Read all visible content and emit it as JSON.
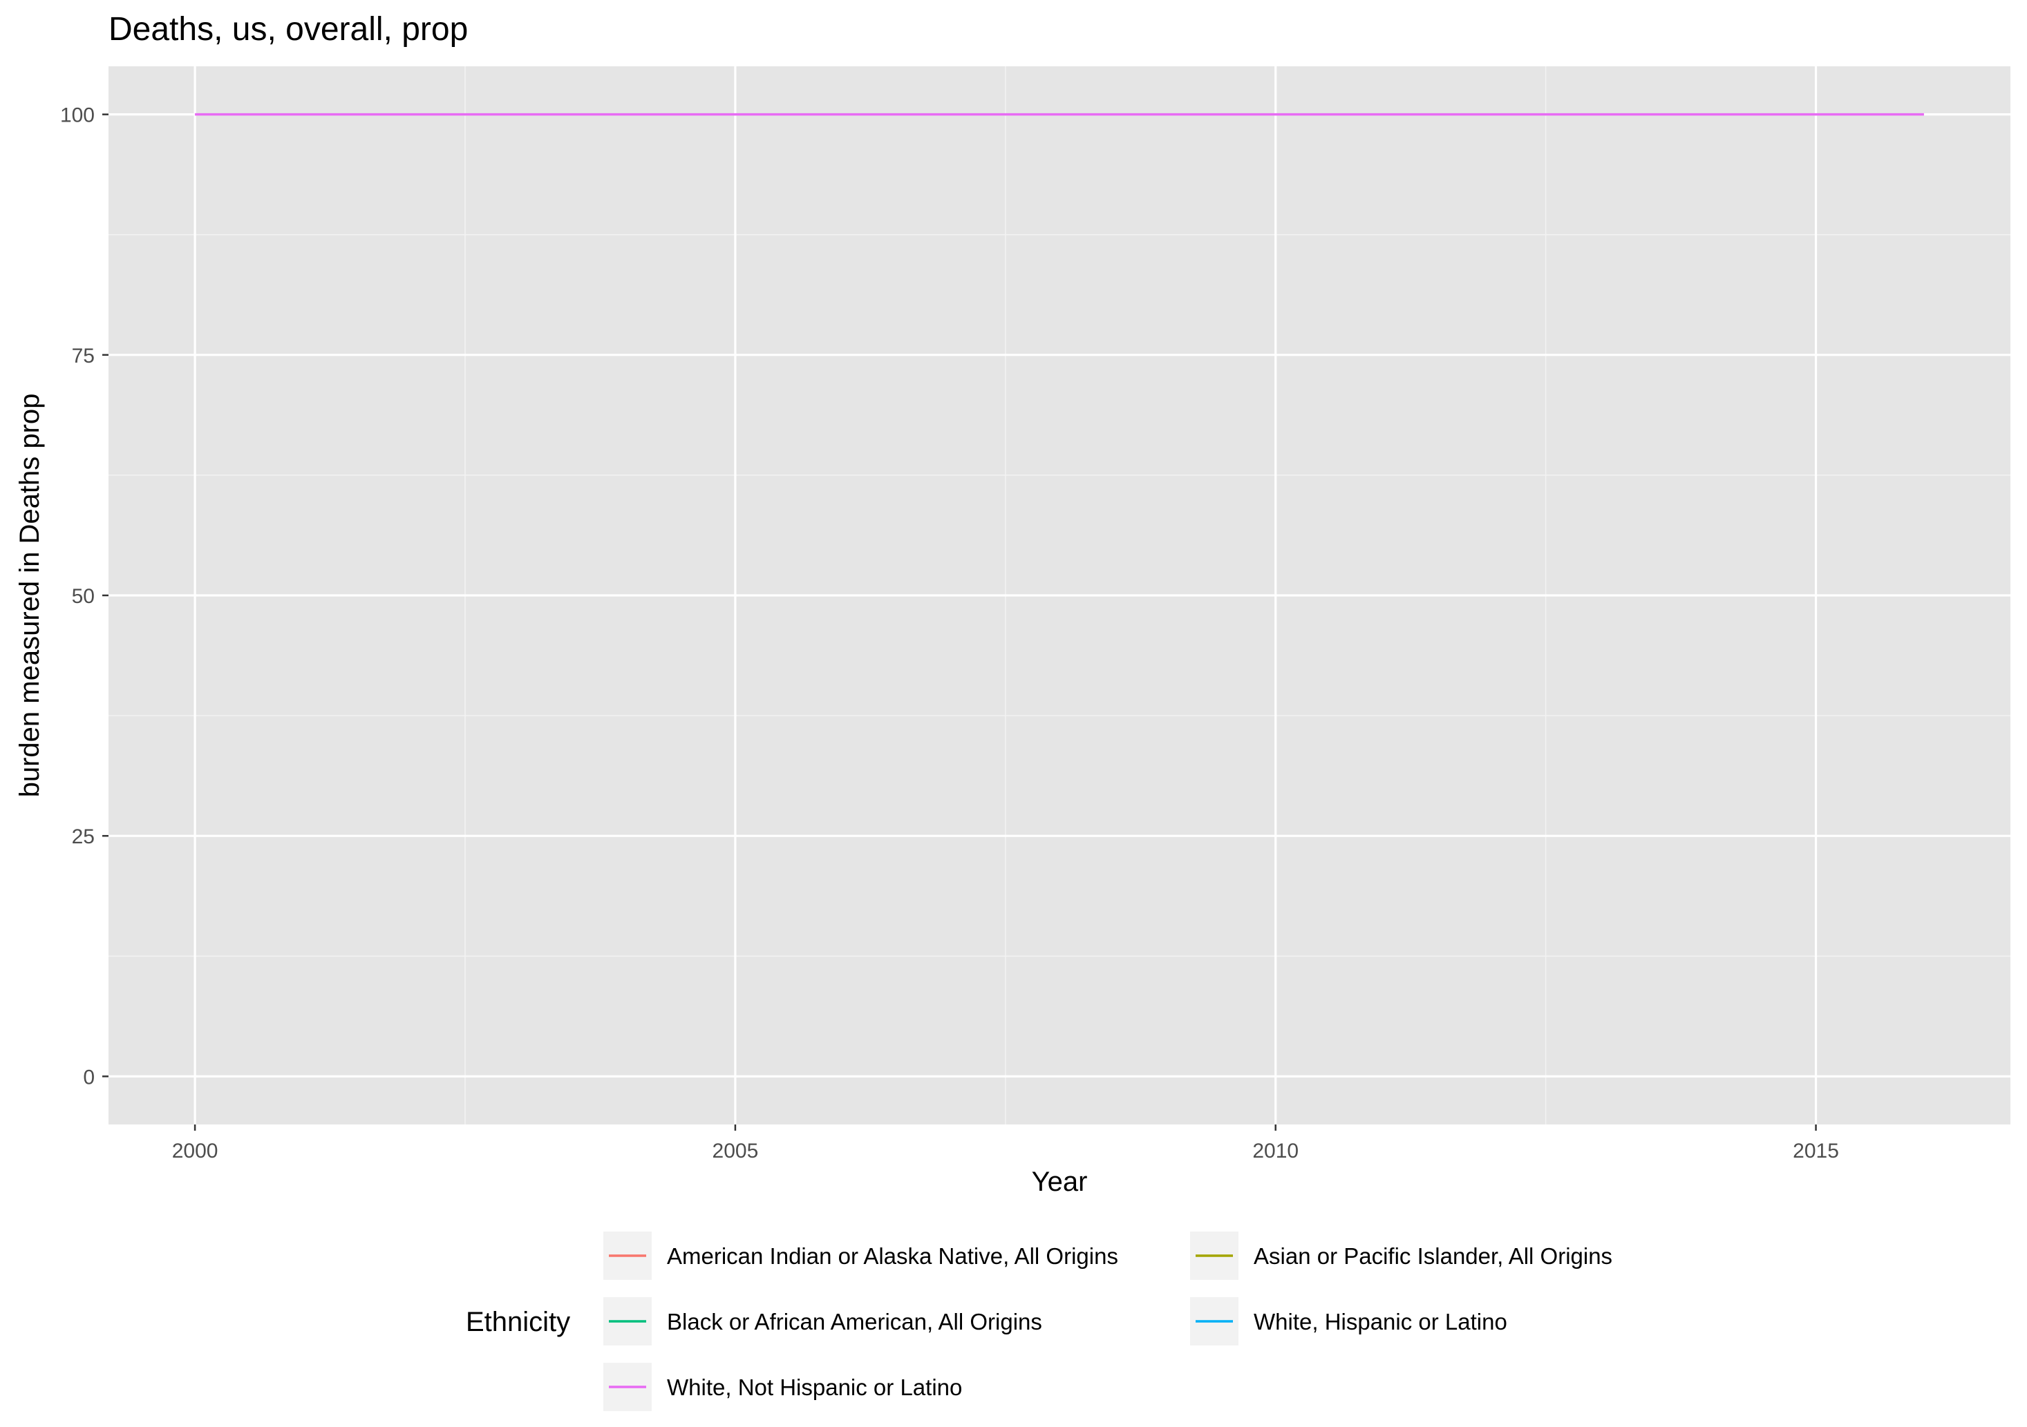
{
  "chart_data": {
    "type": "line",
    "title": "Deaths, us, overall, prop",
    "xlabel": "Year",
    "ylabel": "burden measured in Deaths prop",
    "xlim": [
      1999.2,
      2016.8
    ],
    "ylim": [
      -5,
      105
    ],
    "x_ticks": [
      2000,
      2005,
      2010,
      2015
    ],
    "y_ticks": [
      0,
      25,
      50,
      75,
      100
    ],
    "grid": true,
    "legend": {
      "title": "Ethnicity",
      "placement": "bottom"
    },
    "series": [
      {
        "name": "American Indian or Alaska Native, All Origins",
        "color": "#F8766D",
        "x": [],
        "y": []
      },
      {
        "name": "Asian or Pacific Islander, All Origins",
        "color": "#A3A500",
        "x": [],
        "y": []
      },
      {
        "name": "Black or African American, All Origins",
        "color": "#00BF7D",
        "x": [],
        "y": []
      },
      {
        "name": "White, Hispanic or Latino",
        "color": "#00B0F6",
        "x": [],
        "y": []
      },
      {
        "name": "White, Not Hispanic or Latino",
        "color": "#E76BF3",
        "x": [
          2000,
          2001,
          2002,
          2003,
          2004,
          2005,
          2006,
          2007,
          2008,
          2009,
          2010,
          2011,
          2012,
          2013,
          2014,
          2015,
          2016
        ],
        "y": [
          100,
          100,
          100,
          100,
          100,
          100,
          100,
          100,
          100,
          100,
          100,
          100,
          100,
          100,
          100,
          100,
          100
        ]
      }
    ]
  }
}
